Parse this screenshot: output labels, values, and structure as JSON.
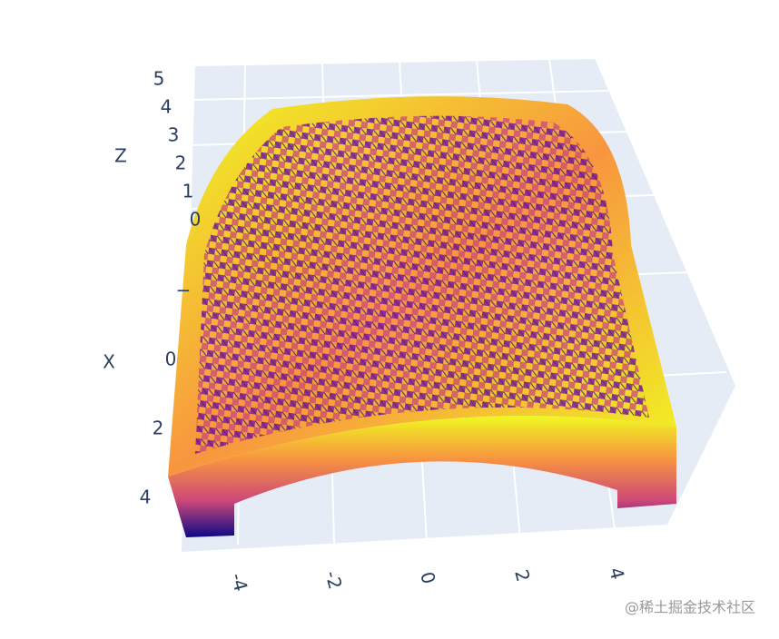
{
  "chart_data": {
    "type": "surface",
    "xaxis_title": "X",
    "zaxis_title": "Z",
    "zticks": [
      0,
      1,
      2,
      3,
      4,
      5
    ],
    "xticks": [
      {
        "value": -2,
        "label": "−"
      },
      0,
      2,
      4
    ],
    "yticks": [
      -4,
      -2,
      0,
      2,
      4
    ],
    "colors": [
      "#0d0887",
      "#7e03a8",
      "#cc4778",
      "#f89540",
      "#f0f921"
    ]
  },
  "watermark": "@稀土掘金技术社区"
}
